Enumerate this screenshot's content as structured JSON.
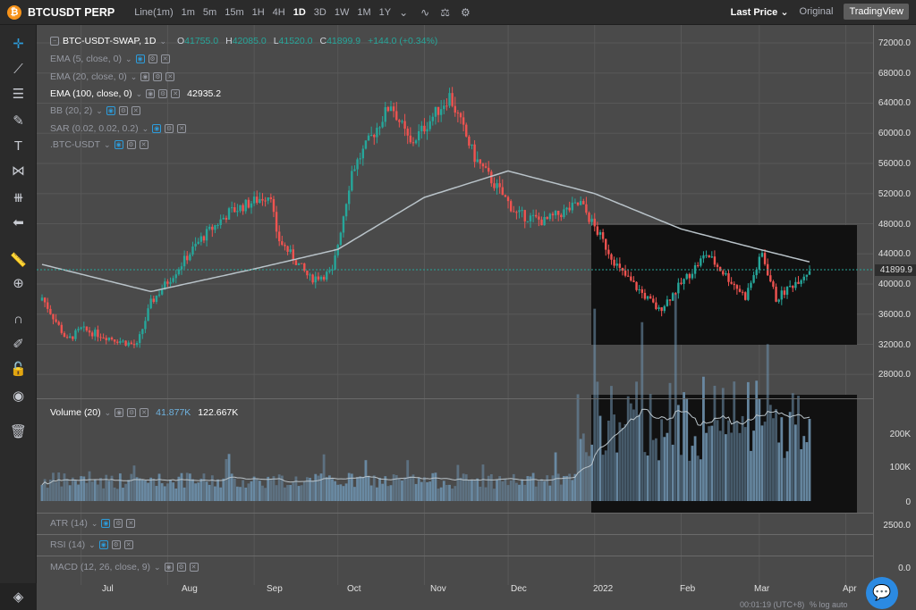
{
  "header": {
    "logo_glyph": "₿",
    "symbol": "BTCUSDT PERP",
    "timeframes": [
      "Line(1m)",
      "1m",
      "5m",
      "15m",
      "1H",
      "4H",
      "1D",
      "3D",
      "1W",
      "1M",
      "1Y"
    ],
    "active_timeframe": "1D",
    "price_type": "Last Price",
    "view_original": "Original",
    "view_tradingview": "TradingView"
  },
  "legend": {
    "main": "BTC-USDT-SWAP, 1D",
    "ohlc": {
      "o_label": "O",
      "o": "41755.0",
      "h_label": "H",
      "h": "42085.0",
      "l_label": "L",
      "l": "41520.0",
      "c_label": "C",
      "c": "41899.9",
      "change": "+144.0 (+0.34%)"
    },
    "indicators": [
      {
        "name": "EMA (5, close, 0)",
        "value": ""
      },
      {
        "name": "EMA (20, close, 0)",
        "value": ""
      },
      {
        "name": "EMA (100, close, 0)",
        "value": "42935.2"
      },
      {
        "name": "BB (20, 2)",
        "value": ""
      },
      {
        "name": "SAR (0.02, 0.02, 0.2)",
        "value": ""
      },
      {
        "name": ".BTC-USDT",
        "value": ""
      }
    ],
    "volume": {
      "name": "Volume (20)",
      "v1": "41.877K",
      "v2": "122.667K"
    },
    "atr": "ATR (14)",
    "rsi": "RSI (14)",
    "macd": "MACD (12, 26, close, 9)"
  },
  "price_axis": [
    "72000.0",
    "68000.0",
    "64000.0",
    "60000.0",
    "56000.0",
    "52000.0",
    "48000.0",
    "44000.0",
    "40000.0",
    "36000.0",
    "32000.0",
    "28000.0"
  ],
  "last_price_tag": "41899.9",
  "volume_axis": [
    "200K",
    "100K",
    "0"
  ],
  "atr_axis": "2500.0",
  "macd_axis": "0.0",
  "time_axis": [
    "Jul",
    "Aug",
    "Sep",
    "Oct",
    "Nov",
    "Dec",
    "2022",
    "Feb",
    "Mar",
    "Apr"
  ],
  "status": {
    "time": "00:01:19 (UTC+8)",
    "right": "% log auto"
  },
  "colors": {
    "up": "#26a69a",
    "down": "#ef5350",
    "ema100": "#b9c3c9",
    "volume": "#6a8ca6",
    "accent": "#2d9cdb"
  },
  "chart_data": {
    "type": "candlestick",
    "symbol": "BTC-USDT-SWAP",
    "interval": "1D",
    "ylim": [
      26000,
      73000
    ],
    "price_keypoints": [
      {
        "date": "2021-06-17",
        "close": 38200
      },
      {
        "date": "2021-06-26",
        "close": 32500
      },
      {
        "date": "2021-07-01",
        "close": 34000
      },
      {
        "date": "2021-07-21",
        "close": 31800
      },
      {
        "date": "2021-07-26",
        "close": 37500
      },
      {
        "date": "2021-08-13",
        "close": 46000
      },
      {
        "date": "2021-08-23",
        "close": 49500
      },
      {
        "date": "2021-09-07",
        "close": 52000
      },
      {
        "date": "2021-09-09",
        "close": 46300
      },
      {
        "date": "2021-09-21",
        "close": 40700
      },
      {
        "date": "2021-09-29",
        "close": 41500
      },
      {
        "date": "2021-10-06",
        "close": 55000
      },
      {
        "date": "2021-10-20",
        "close": 64000
      },
      {
        "date": "2021-10-27",
        "close": 58500
      },
      {
        "date": "2021-11-10",
        "close": 65000
      },
      {
        "date": "2021-11-19",
        "close": 56800
      },
      {
        "date": "2021-12-04",
        "close": 49300
      },
      {
        "date": "2021-12-14",
        "close": 48300
      },
      {
        "date": "2021-12-27",
        "close": 50700
      },
      {
        "date": "2022-01-10",
        "close": 41800
      },
      {
        "date": "2022-01-24",
        "close": 36500
      },
      {
        "date": "2022-02-10",
        "close": 44000
      },
      {
        "date": "2022-02-24",
        "close": 38300
      },
      {
        "date": "2022-03-02",
        "close": 44000
      },
      {
        "date": "2022-03-07",
        "close": 38000
      },
      {
        "date": "2022-03-19",
        "close": 41899.9
      }
    ],
    "ema100_keypoints": [
      {
        "date": "2021-06-17",
        "value": 42600
      },
      {
        "date": "2021-07-26",
        "value": 39000
      },
      {
        "date": "2021-09-01",
        "value": 42000
      },
      {
        "date": "2021-10-01",
        "value": 44600
      },
      {
        "date": "2021-11-01",
        "value": 51500
      },
      {
        "date": "2021-12-01",
        "value": 55000
      },
      {
        "date": "2022-01-01",
        "value": 52000
      },
      {
        "date": "2022-02-01",
        "value": 47300
      },
      {
        "date": "2022-03-01",
        "value": 44600
      },
      {
        "date": "2022-03-19",
        "value": 42935.2
      }
    ],
    "volume_20_ma": 41877,
    "volume_last": 122667,
    "volume_ylim": [
      0,
      260000
    ]
  }
}
